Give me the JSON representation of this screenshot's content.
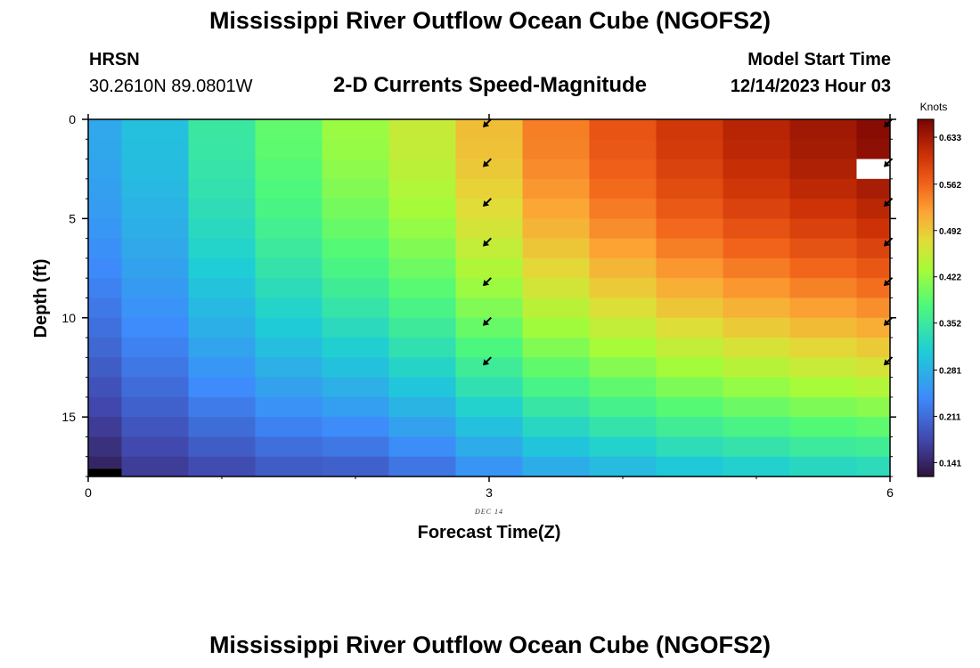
{
  "header": {
    "title": "Mississippi River Outflow Ocean Cube (NGOFS2)",
    "station": "HRSN",
    "coordinates": "30.2610N  89.0801W",
    "subtitle": "2-D Currents Speed-Magnitude",
    "model_start_label": "Model Start Time",
    "model_start_value": "12/14/2023 Hour 03"
  },
  "footer": {
    "title": "Mississippi River Outflow Ocean Cube (NGOFS2)"
  },
  "chart_data": {
    "type": "heatmap",
    "xlabel": "Forecast Time(Z)",
    "ylabel": "Depth (ft)",
    "x_ticks": [
      "0",
      "3",
      "6"
    ],
    "x_sublabel": "DEC 14",
    "y_ticks": [
      "0",
      "5",
      "10",
      "15"
    ],
    "xlim": [
      0,
      6
    ],
    "ylim": [
      0,
      18
    ],
    "y_inverted": true,
    "colorbar": {
      "label": "Knots",
      "ticks": [
        "0.633",
        "0.562",
        "0.492",
        "0.422",
        "0.352",
        "0.281",
        "0.211",
        "0.141"
      ],
      "tick_values": [
        0.633,
        0.562,
        0.492,
        0.422,
        0.352,
        0.281,
        0.211,
        0.141
      ],
      "range": [
        0.12,
        0.66
      ]
    },
    "time_edges": [
      0,
      0.25,
      0.75,
      1.25,
      1.75,
      2.25,
      2.75,
      3.25,
      3.75,
      4.25,
      4.75,
      5.25,
      5.75,
      6
    ],
    "depth_edges": [
      0,
      1,
      2,
      3,
      4,
      5,
      6,
      7,
      8,
      9,
      10,
      11,
      12,
      13,
      14,
      15,
      16,
      17,
      18
    ],
    "surface_speeds": [
      0.27,
      0.295,
      0.35,
      0.39,
      0.425,
      0.455,
      0.5,
      0.545,
      0.575,
      0.6,
      0.62,
      0.635,
      0.65
    ],
    "bottom_speeds": [
      0.14,
      0.165,
      0.18,
      0.195,
      0.2,
      0.22,
      0.25,
      0.275,
      0.29,
      0.305,
      0.315,
      0.325,
      0.33
    ],
    "missing_cells": [
      [
        12,
        2
      ]
    ],
    "no_data_cells": [
      [
        0,
        17
      ]
    ],
    "vectors": [
      {
        "time": 3,
        "depths": [
          0,
          2,
          4,
          6,
          8,
          10,
          12
        ],
        "direction_deg": 225
      },
      {
        "time": 6,
        "depths": [
          0,
          2,
          4,
          6,
          8,
          10,
          12
        ],
        "direction_deg": 225
      }
    ]
  }
}
